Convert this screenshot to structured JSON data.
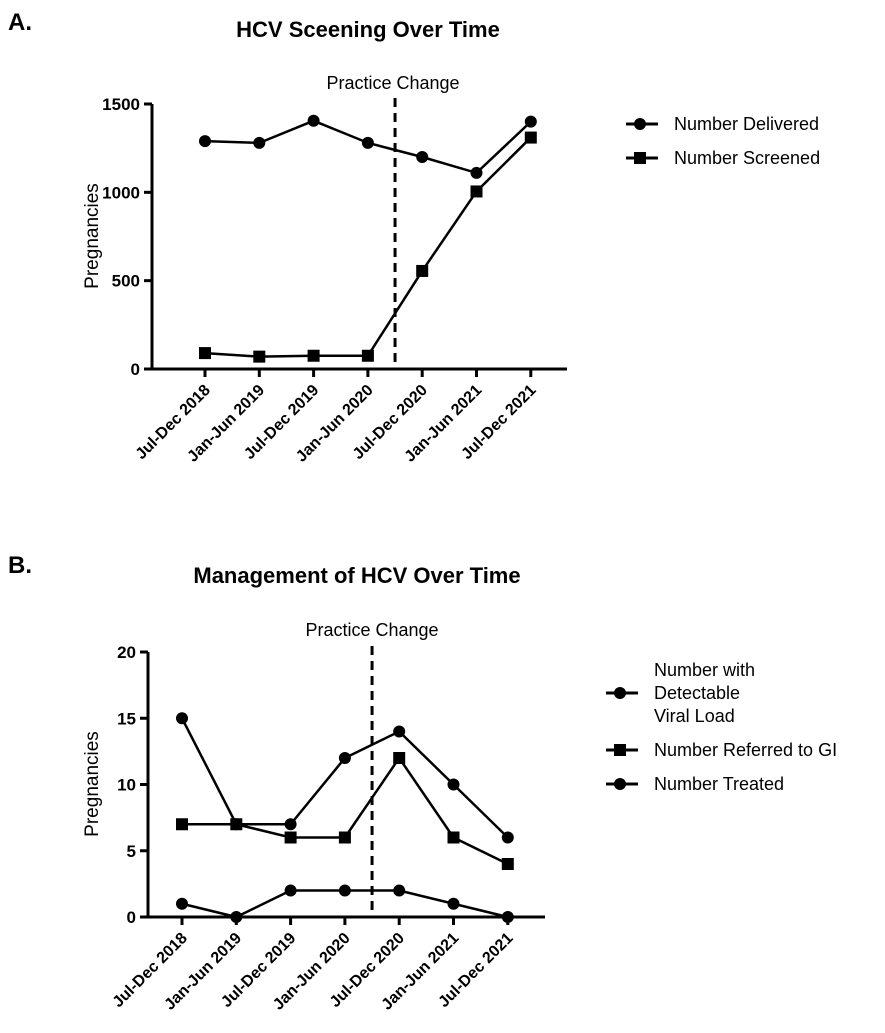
{
  "chart_data": [
    {
      "panel": "A.",
      "type": "line",
      "title": "HCV Sceening Over Time",
      "annotation": "Practice Change",
      "annotation_x": 3.5,
      "xlabel": "",
      "ylabel": "Pregnancies",
      "categories": [
        "Jul-Dec 2018",
        "Jan-Jun 2019",
        "Jul-Dec 2019",
        "Jan-Jun 2020",
        "Jul-Dec 2020",
        "Jan-Jun 2021",
        "Jul-Dec 2021"
      ],
      "ylim": [
        0,
        1500
      ],
      "yticks": [
        0,
        500,
        1000,
        1500
      ],
      "series": [
        {
          "name": "Number Delivered",
          "marker": "circle",
          "values": [
            1290,
            1280,
            1405,
            1280,
            1200,
            1110,
            1400
          ]
        },
        {
          "name": "Number Screened",
          "marker": "square",
          "values": [
            90,
            70,
            75,
            75,
            555,
            1005,
            1310
          ]
        }
      ],
      "legend": [
        {
          "marker": "circle",
          "lines": [
            "Number Delivered"
          ]
        },
        {
          "marker": "square",
          "lines": [
            "Number Screened"
          ]
        }
      ],
      "legend_position": "right",
      "grid": false
    },
    {
      "panel": "B.",
      "type": "line",
      "title": "Management of HCV Over Time",
      "annotation": "Practice Change",
      "annotation_x": 3.5,
      "xlabel": "",
      "ylabel": "Pregnancies",
      "categories": [
        "Jul-Dec 2018",
        "Jan-Jun 2019",
        "Jul-Dec 2019",
        "Jan-Jun 2020",
        "Jul-Dec 2020",
        "Jan-Jun 2021",
        "Jul-Dec 2021"
      ],
      "ylim": [
        0,
        20
      ],
      "yticks": [
        0,
        5,
        10,
        15,
        20
      ],
      "series": [
        {
          "name": "Number with Detectable Viral Load",
          "marker": "circle",
          "values": [
            15,
            7,
            7,
            12,
            14,
            10,
            6
          ]
        },
        {
          "name": "Number Referred to GI",
          "marker": "square",
          "values": [
            7,
            7,
            6,
            6,
            12,
            6,
            4
          ]
        },
        {
          "name": "Number Treated",
          "marker": "circle",
          "values": [
            1,
            0,
            2,
            2,
            2,
            1,
            0
          ]
        }
      ],
      "legend": [
        {
          "marker": "circle",
          "lines": [
            "Number with",
            "Detectable",
            "Viral Load"
          ]
        },
        {
          "marker": "square",
          "lines": [
            "Number Referred to GI"
          ]
        },
        {
          "marker": "circle",
          "lines": [
            "Number Treated"
          ]
        }
      ],
      "legend_position": "right",
      "grid": false
    }
  ]
}
